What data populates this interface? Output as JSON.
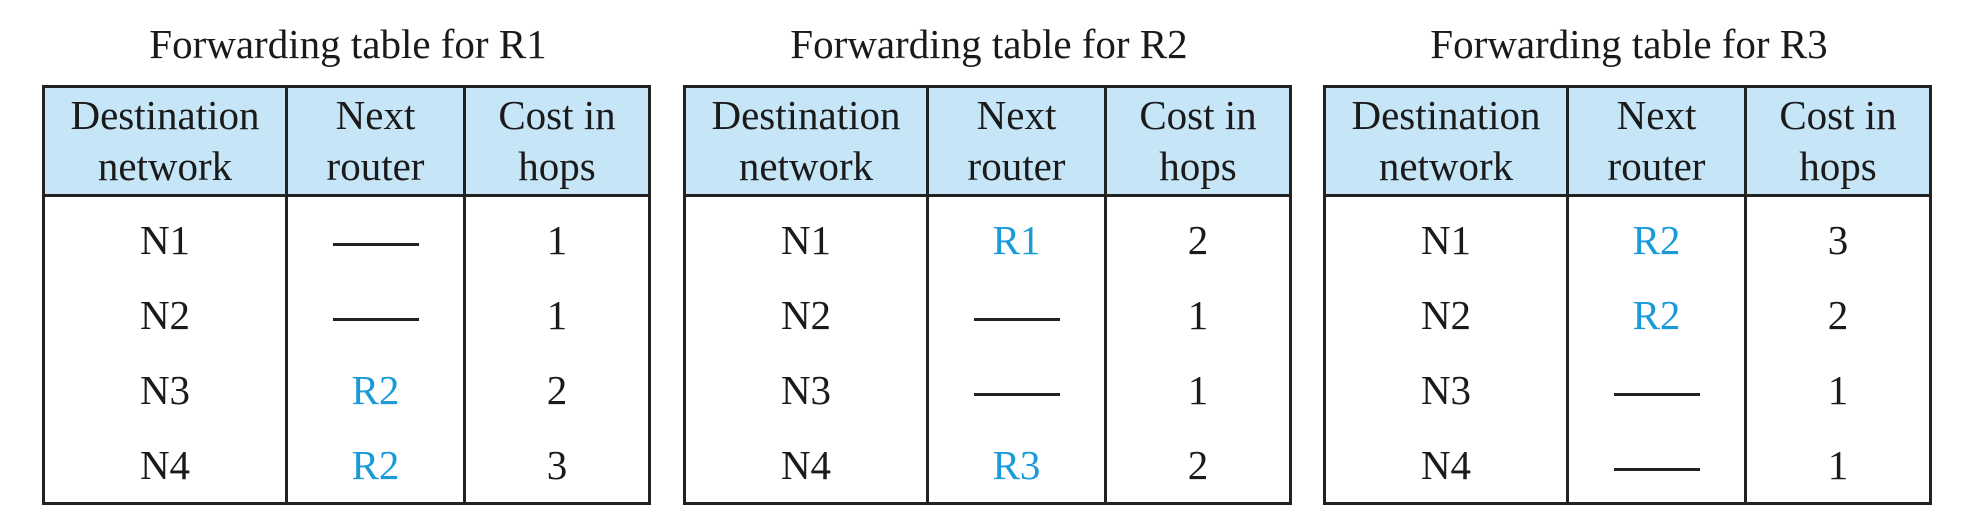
{
  "headers": {
    "destination": [
      "Destination",
      "network"
    ],
    "next": [
      "Next",
      "router"
    ],
    "cost": [
      "Cost in",
      "hops"
    ]
  },
  "tables": [
    {
      "caption": "Forwarding table for R1",
      "rows": [
        {
          "dest": "N1",
          "next": null,
          "cost": "1"
        },
        {
          "dest": "N2",
          "next": null,
          "cost": "1"
        },
        {
          "dest": "N3",
          "next": "R2",
          "cost": "2"
        },
        {
          "dest": "N4",
          "next": "R2",
          "cost": "3"
        }
      ]
    },
    {
      "caption": "Forwarding table for R2",
      "rows": [
        {
          "dest": "N1",
          "next": "R1",
          "cost": "2"
        },
        {
          "dest": "N2",
          "next": null,
          "cost": "1"
        },
        {
          "dest": "N3",
          "next": null,
          "cost": "1"
        },
        {
          "dest": "N4",
          "next": "R3",
          "cost": "2"
        }
      ]
    },
    {
      "caption": "Forwarding table for R3",
      "rows": [
        {
          "dest": "N1",
          "next": "R2",
          "cost": "3"
        },
        {
          "dest": "N2",
          "next": "R2",
          "cost": "2"
        },
        {
          "dest": "N3",
          "next": null,
          "cost": "1"
        },
        {
          "dest": "N4",
          "next": null,
          "cost": "1"
        }
      ]
    }
  ],
  "colors": {
    "header_bg": "#c6e6f7",
    "next_router_text": "#1a9ad6",
    "border": "#222222"
  }
}
